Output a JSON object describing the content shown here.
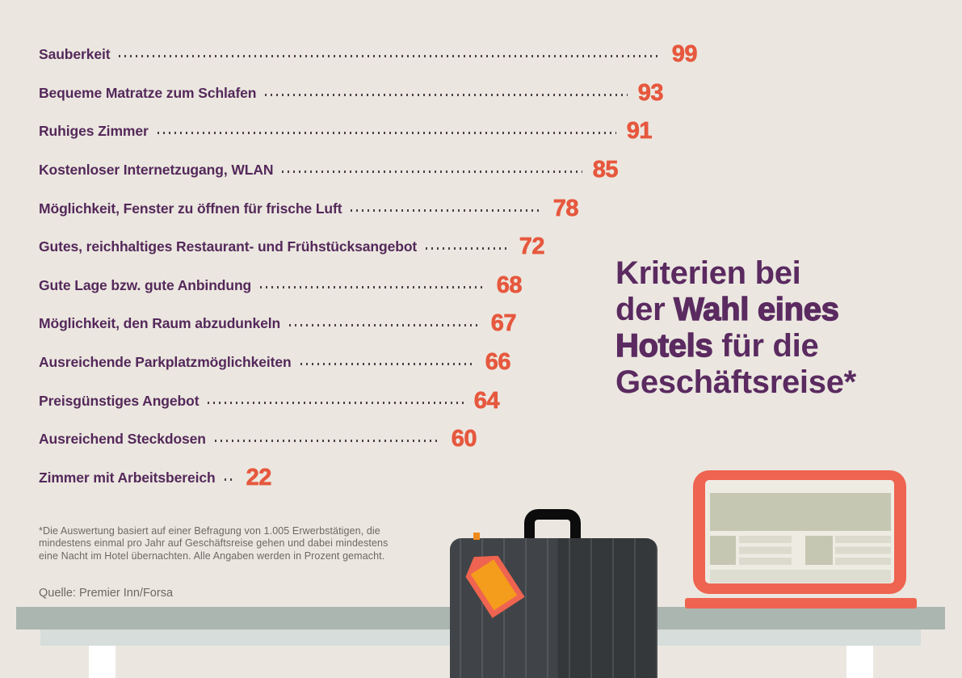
{
  "colors": {
    "background": "#ebe7e0",
    "label_purple": "#54285a",
    "title_purple": "#5a2a60",
    "value_orange": "#e6583e",
    "illustration_orange": "#ee6450",
    "tag_orange": "#f49c1b",
    "dot_leader": "#4a4046",
    "table_gray": "#acb6b1",
    "table_edge_gray": "#d6ddda",
    "suitcase_dark": "#3b3e42",
    "footnote_gray": "#6c6862"
  },
  "chart_data": {
    "type": "bar",
    "orientation": "horizontal-dot-leader",
    "unit": "percent",
    "title": "Kriterien bei der Wahl eines Hotels für die Geschäftsreise*",
    "xlim": [
      0,
      100
    ],
    "grid": false,
    "legend": "none",
    "value_label_position": "end-of-leader",
    "categories": [
      "Sauberkeit",
      "Bequeme Matratze zum Schlafen",
      "Ruhiges Zimmer",
      "Kostenloser Internetzugang, WLAN",
      "Möglichkeit, Fenster zu öffnen für frische Luft",
      "Gutes, reichhaltiges Restaurant- und Frühstücksangebot",
      "Gute Lage bzw. gute Anbindung",
      "Möglichkeit, den Raum abzudunkeln",
      "Ausreichende Parkplatzmöglichkeiten",
      "Preisgünstiges Angebot",
      "Ausreichend Steckdosen",
      "Zimmer mit Arbeitsbereich"
    ],
    "values": [
      99,
      93,
      91,
      85,
      78,
      72,
      68,
      67,
      66,
      64,
      60,
      22
    ]
  },
  "title": {
    "line1": "Kriterien bei",
    "line2_regular": "der ",
    "line2_bold": "Wahl eines",
    "line3_bold": "Hotels",
    "line3_regular": " für die",
    "line4": "Geschäftsreise*"
  },
  "footnote": {
    "line1": "*Die Auswertung basiert auf einer Befragung von 1.005 Erwerbstätigen, die",
    "line2": "mindestens einmal pro Jahr auf Geschäftsreise gehen und dabei mindestens",
    "line3": "eine Nacht im Hotel übernachten. Alle Angaben werden in Prozent gemacht."
  },
  "source": "Quelle: Premier Inn/Forsa",
  "illustration": {
    "icons": [
      "table",
      "suitcase-icon",
      "luggage-tag-icon",
      "laptop-icon"
    ]
  }
}
